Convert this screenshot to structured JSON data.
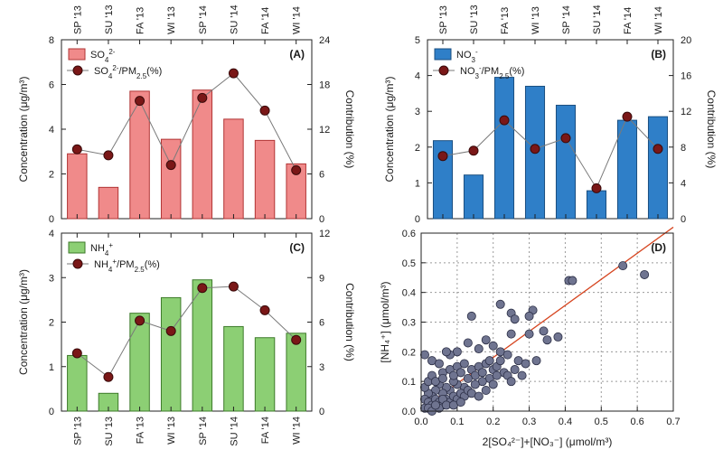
{
  "chart_data": [
    {
      "id": "A",
      "type": "bar",
      "panel_label": "(A)",
      "categories": [
        "SP '13",
        "SU '13",
        "FA '13",
        "WI '13",
        "SP '14",
        "SU '14",
        "FA '14",
        "WI '14"
      ],
      "series": [
        {
          "name": "SO4 2-",
          "axis": "left",
          "values": [
            2.9,
            1.4,
            5.7,
            3.55,
            5.75,
            4.45,
            3.5,
            2.45
          ]
        },
        {
          "name": "SO4 2-/PM2.5(%)",
          "axis": "right",
          "values": [
            9.3,
            8.5,
            15.8,
            7.2,
            16.2,
            19.5,
            14.5,
            6.5
          ]
        }
      ],
      "ylabel": "Concentration (μg/m³)",
      "y2label": "Contribution (%)",
      "ylim": [
        0,
        8
      ],
      "y2lim": [
        0,
        24
      ],
      "yticks": [
        "0",
        "2",
        "4",
        "6",
        "8"
      ],
      "y2ticks": [
        "0",
        "6",
        "12",
        "18",
        "24"
      ],
      "legend": {
        "bar_main": "SO",
        "bar_sub": "4",
        "bar_sup": "2-",
        "line_main": "SO",
        "line_sub": "4",
        "line_sup": "2-",
        "line_rest": "/PM",
        "line_sub2": "2.5",
        "line_tail": "(%)"
      },
      "colors": {
        "bar": "#f08a8a",
        "edge": "#b13535"
      }
    },
    {
      "id": "B",
      "type": "bar",
      "panel_label": "(B)",
      "categories": [
        "SP '13",
        "SU '13",
        "FA '13",
        "WI '13",
        "SP '14",
        "SU '14",
        "FA '14",
        "WI '14"
      ],
      "series": [
        {
          "name": "NO3 -",
          "axis": "left",
          "values": [
            2.18,
            1.22,
            3.95,
            3.7,
            3.17,
            0.78,
            2.75,
            2.85
          ]
        },
        {
          "name": "NO3 -/PM2.5(%)",
          "axis": "right",
          "values": [
            7.0,
            7.6,
            11.0,
            7.8,
            9.0,
            3.4,
            11.4,
            7.8
          ]
        }
      ],
      "ylabel": "Concentration (μg/m³)",
      "y2label": "Contribution (%)",
      "ylim": [
        0,
        5
      ],
      "y2lim": [
        0,
        20
      ],
      "yticks": [
        "0",
        "1",
        "2",
        "3",
        "4",
        "5"
      ],
      "y2ticks": [
        "0",
        "4",
        "8",
        "12",
        "16",
        "20"
      ],
      "legend": {
        "bar_main": "NO",
        "bar_sub": "3",
        "bar_sup": "-",
        "line_main": "NO",
        "line_sub": "3",
        "line_sup": "-",
        "line_rest": "/PM",
        "line_sub2": "2.5",
        "line_tail": "(%)"
      },
      "colors": {
        "bar": "#2f7fc8",
        "edge": "#1b4f80"
      }
    },
    {
      "id": "C",
      "type": "bar",
      "panel_label": "(C)",
      "categories": [
        "SP '13",
        "SU '13",
        "FA '13",
        "WI '13",
        "SP '14",
        "SU '14",
        "FA '14",
        "WI '14"
      ],
      "series": [
        {
          "name": "NH4 +",
          "axis": "left",
          "values": [
            1.25,
            0.4,
            2.2,
            2.55,
            2.95,
            1.9,
            1.65,
            1.75
          ]
        },
        {
          "name": "NH4 +/PM2.5(%)",
          "axis": "right",
          "values": [
            3.9,
            2.3,
            6.1,
            5.4,
            8.3,
            8.4,
            6.8,
            4.8
          ]
        }
      ],
      "ylabel": "Concentration (μg/m³)",
      "y2label": "Contribution (%)",
      "ylim": [
        0,
        4
      ],
      "y2lim": [
        0,
        12
      ],
      "yticks": [
        "0",
        "1",
        "2",
        "3",
        "4"
      ],
      "y2ticks": [
        "0",
        "3",
        "6",
        "9",
        "12"
      ],
      "legend": {
        "bar_main": "NH",
        "bar_sub": "4",
        "bar_sup": "+",
        "line_main": "NH",
        "line_sub": "4",
        "line_sup": "+",
        "line_rest": "/PM",
        "line_sub2": "2.5",
        "line_tail": "(%)"
      },
      "colors": {
        "bar": "#8ccf74",
        "edge": "#3d7a2a"
      }
    },
    {
      "id": "D",
      "type": "scatter",
      "panel_label": "(D)",
      "xlabel": "2[SO₄²⁻]+[NO₃⁻] (μmol/m³)",
      "ylabel": "[NH₄⁺] (μmol/m³)",
      "xlim": [
        0,
        0.7
      ],
      "ylim": [
        0,
        0.6
      ],
      "xticks": [
        "0.0",
        "0.1",
        "0.2",
        "0.3",
        "0.4",
        "0.5",
        "0.6",
        "0.7"
      ],
      "yticks": [
        "0.0",
        "0.1",
        "0.2",
        "0.3",
        "0.4",
        "0.5",
        "0.6"
      ],
      "fit_line": {
        "x": [
          0.0,
          0.7
        ],
        "y": [
          0.005,
          0.62
        ]
      },
      "points": [
        [
          0.62,
          0.46
        ],
        [
          0.56,
          0.49
        ],
        [
          0.41,
          0.44
        ],
        [
          0.42,
          0.44
        ],
        [
          0.22,
          0.36
        ],
        [
          0.31,
          0.34
        ],
        [
          0.25,
          0.33
        ],
        [
          0.26,
          0.31
        ],
        [
          0.3,
          0.32
        ],
        [
          0.14,
          0.32
        ],
        [
          0.34,
          0.27
        ],
        [
          0.38,
          0.25
        ],
        [
          0.35,
          0.24
        ],
        [
          0.3,
          0.26
        ],
        [
          0.25,
          0.26
        ],
        [
          0.2,
          0.22
        ],
        [
          0.22,
          0.2
        ],
        [
          0.24,
          0.19
        ],
        [
          0.27,
          0.17
        ],
        [
          0.29,
          0.16
        ],
        [
          0.32,
          0.17
        ],
        [
          0.18,
          0.24
        ],
        [
          0.16,
          0.21
        ],
        [
          0.13,
          0.23
        ],
        [
          0.1,
          0.2
        ],
        [
          0.08,
          0.19
        ],
        [
          0.07,
          0.2
        ],
        [
          0.01,
          0.19
        ],
        [
          0.03,
          0.17
        ],
        [
          0.05,
          0.16
        ],
        [
          0.06,
          0.13
        ],
        [
          0.08,
          0.14
        ],
        [
          0.1,
          0.15
        ],
        [
          0.11,
          0.13
        ],
        [
          0.12,
          0.16
        ],
        [
          0.14,
          0.14
        ],
        [
          0.15,
          0.12
        ],
        [
          0.16,
          0.15
        ],
        [
          0.17,
          0.13
        ],
        [
          0.18,
          0.16
        ],
        [
          0.19,
          0.17
        ],
        [
          0.2,
          0.14
        ],
        [
          0.21,
          0.15
        ],
        [
          0.23,
          0.13
        ],
        [
          0.22,
          0.17
        ],
        [
          0.19,
          0.11
        ],
        [
          0.17,
          0.1
        ],
        [
          0.15,
          0.09
        ],
        [
          0.13,
          0.11
        ],
        [
          0.12,
          0.08
        ],
        [
          0.1,
          0.09
        ],
        [
          0.09,
          0.1
        ],
        [
          0.08,
          0.07
        ],
        [
          0.07,
          0.08
        ],
        [
          0.06,
          0.06
        ],
        [
          0.05,
          0.09
        ],
        [
          0.04,
          0.07
        ],
        [
          0.03,
          0.05
        ],
        [
          0.02,
          0.06
        ],
        [
          0.01,
          0.04
        ],
        [
          0.02,
          0.03
        ],
        [
          0.03,
          0.02
        ],
        [
          0.04,
          0.04
        ],
        [
          0.05,
          0.03
        ],
        [
          0.06,
          0.02
        ],
        [
          0.07,
          0.04
        ],
        [
          0.08,
          0.03
        ],
        [
          0.09,
          0.05
        ],
        [
          0.1,
          0.04
        ],
        [
          0.11,
          0.06
        ],
        [
          0.12,
          0.05
        ],
        [
          0.13,
          0.07
        ],
        [
          0.14,
          0.06
        ],
        [
          0.01,
          0.01
        ],
        [
          0.02,
          0.01
        ],
        [
          0.03,
          0.0
        ],
        [
          0.05,
          0.01
        ],
        [
          0.04,
          0.02
        ],
        [
          0.06,
          0.04
        ],
        [
          0.07,
          0.02
        ],
        [
          0.09,
          0.02
        ],
        [
          0.11,
          0.03
        ],
        [
          0.01,
          0.08
        ],
        [
          0.02,
          0.1
        ],
        [
          0.03,
          0.12
        ],
        [
          0.04,
          0.1
        ],
        [
          0.06,
          0.11
        ],
        [
          0.09,
          0.12
        ],
        [
          0.16,
          0.05
        ],
        [
          0.18,
          0.07
        ],
        [
          0.2,
          0.09
        ],
        [
          0.24,
          0.12
        ],
        [
          0.26,
          0.14
        ],
        [
          0.28,
          0.12
        ],
        [
          0.25,
          0.1
        ],
        [
          0.21,
          0.12
        ]
      ],
      "colors": {
        "point": "#6f7490",
        "point_edge": "#2b2e45",
        "line": "#d64520"
      }
    }
  ]
}
